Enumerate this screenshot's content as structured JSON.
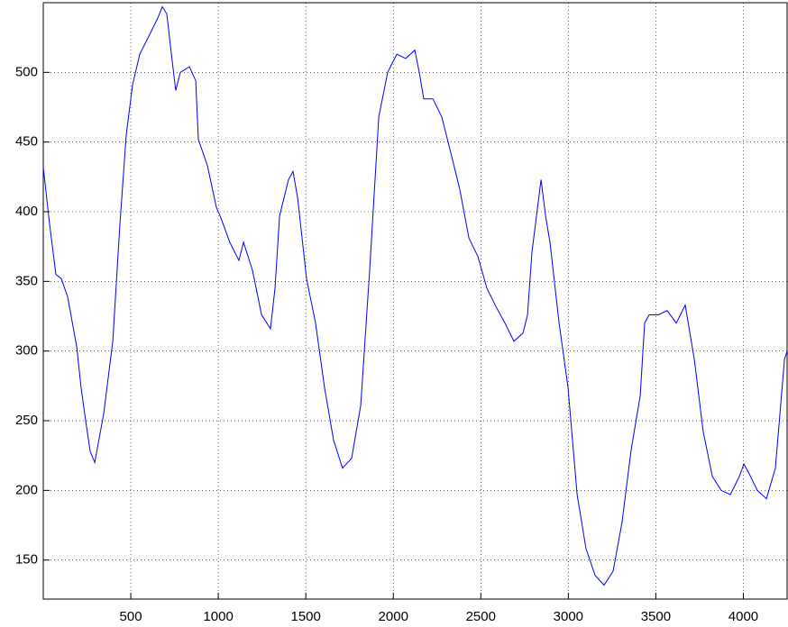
{
  "chart_data": {
    "type": "line",
    "x": [
      0,
      36,
      72,
      103,
      139,
      191,
      216,
      242,
      268,
      294,
      345,
      397,
      438,
      474,
      510,
      551,
      603,
      654,
      680,
      706,
      732,
      757,
      783,
      835,
      871,
      886,
      938,
      989,
      1010,
      1066,
      1118,
      1144,
      1195,
      1247,
      1298,
      1324,
      1350,
      1401,
      1427,
      1453,
      1504,
      1556,
      1607,
      1659,
      1710,
      1762,
      1814,
      1865,
      1917,
      1968,
      2020,
      2071,
      2123,
      2148,
      2174,
      2226,
      2277,
      2329,
      2380,
      2432,
      2483,
      2535,
      2586,
      2638,
      2689,
      2741,
      2767,
      2792,
      2844,
      2870,
      2895,
      2947,
      2998,
      3050,
      3101,
      3153,
      3204,
      3256,
      3307,
      3359,
      3411,
      3436,
      3462,
      3514,
      3565,
      3617,
      3668,
      3720,
      3771,
      3823,
      3874,
      3926,
      3977,
      4003,
      4029,
      4080,
      4132,
      4183,
      4235,
      4250
    ],
    "values": [
      432,
      391,
      355,
      352,
      339,
      303,
      274,
      250,
      228,
      220,
      255,
      307,
      391,
      455,
      491,
      513,
      526,
      539,
      547,
      542,
      513,
      487,
      500,
      504,
      494,
      452,
      433,
      403,
      397,
      378,
      365,
      378,
      358,
      326,
      316,
      345,
      397,
      423,
      429,
      410,
      352,
      320,
      274,
      236,
      216,
      223,
      261,
      358,
      468,
      500,
      513,
      510,
      516,
      500,
      481,
      481,
      468,
      442,
      416,
      381,
      368,
      345,
      332,
      320,
      307,
      313,
      326,
      371,
      423,
      397,
      378,
      320,
      274,
      197,
      158,
      139,
      132,
      142,
      177,
      229,
      268,
      320,
      326,
      326,
      329,
      320,
      333,
      294,
      242,
      210,
      200,
      197,
      210,
      219,
      213,
      200,
      194,
      216,
      294,
      300
    ],
    "color": "#0000ff",
    "xlim": [
      0,
      4250
    ],
    "ylim": [
      122,
      550
    ],
    "xticks": [
      500,
      1000,
      1500,
      2000,
      2500,
      3000,
      3500,
      4000
    ],
    "yticks": [
      150,
      200,
      250,
      300,
      350,
      400,
      450,
      500
    ],
    "grid": true
  }
}
